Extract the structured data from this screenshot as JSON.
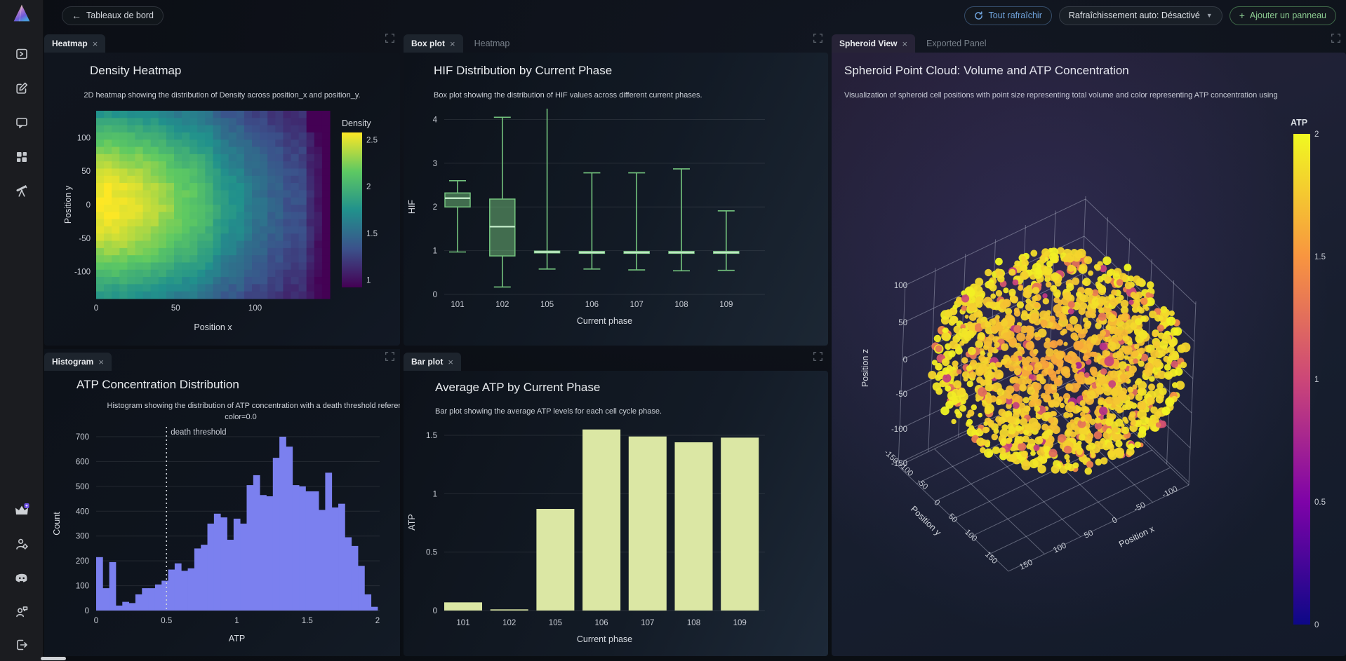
{
  "header": {
    "back_label": "Tableaux de bord",
    "refresh_all_label": "Tout rafraîchir",
    "auto_refresh_label": "Rafraîchissement auto: Désactivé",
    "add_panel_label": "Ajouter un panneau"
  },
  "sidebar": {
    "icons": [
      "app-logo",
      "panel-terminal-icon",
      "compose-icon",
      "chat-icon",
      "dashboard-icon",
      "telescope-icon",
      "crown-icon",
      "user-settings-icon",
      "discord-icon",
      "referral-icon",
      "logout-icon"
    ]
  },
  "panels": {
    "heatmap": {
      "tab": "Heatmap",
      "title": "Density Heatmap",
      "subtitle": "2D heatmap showing the distribution of Density across position_x and position_y."
    },
    "boxplot": {
      "tab": "Box plot",
      "tab2": "Heatmap",
      "title": "HIF Distribution by Current Phase",
      "subtitle": "Box plot showing the distribution of HIF values across different current phases."
    },
    "spheroid": {
      "tab": "Spheroid View",
      "tab2": "Exported Panel",
      "title": "Spheroid Point Cloud: Volume and ATP Concentration",
      "subtitle": "Visualization of spheroid cell positions with point size representing total volume and color representing ATP concentration using"
    },
    "histogram": {
      "tab": "Histogram",
      "title": "ATP Concentration Distribution",
      "subtitle_line1": "Histogram showing the distribution of ATP concentration with a death threshold referen",
      "subtitle_line2": "color=0.0"
    },
    "barplot": {
      "tab": "Bar plot",
      "title": "Average ATP by Current Phase",
      "subtitle": "Bar plot showing the average ATP levels for each cell cycle phase."
    }
  },
  "chart_data": [
    {
      "id": "density_heatmap",
      "type": "heatmap",
      "title": "Density Heatmap",
      "xlabel": "Position x",
      "ylabel": "Position y",
      "x_ticks": [
        0,
        50,
        100
      ],
      "y_ticks": [
        100,
        50,
        0,
        -50,
        -100
      ],
      "xlim": [
        0,
        147
      ],
      "ylim": [
        -140,
        140
      ],
      "grid": [
        30,
        26
      ],
      "density_model": {
        "base": 0.95,
        "amp": 1.63,
        "kx": 1.4,
        "ky": 0.8,
        "peak_at": "left-center"
      },
      "colormap": "viridis",
      "colorbar": {
        "label": "Density",
        "ticks": [
          2.5,
          2,
          1.5,
          1
        ],
        "vmin": 0.92,
        "vmax": 2.58
      }
    },
    {
      "id": "hif_box",
      "type": "box",
      "title": "HIF Distribution by Current Phase",
      "xlabel": "Current phase",
      "ylabel": "HIF",
      "categories": [
        "101",
        "102",
        "105",
        "106",
        "107",
        "108",
        "109"
      ],
      "stats": [
        {
          "lo": 0.97,
          "q1": 2.0,
          "med": 2.2,
          "q3": 2.32,
          "hi": 2.6
        },
        {
          "lo": 0.17,
          "q1": 0.88,
          "med": 1.55,
          "q3": 2.18,
          "hi": 4.05
        },
        {
          "lo": 0.58,
          "q1": 0.95,
          "med": 0.97,
          "q3": 0.99,
          "hi": 4.45
        },
        {
          "lo": 0.58,
          "q1": 0.94,
          "med": 0.96,
          "q3": 0.98,
          "hi": 2.78
        },
        {
          "lo": 0.56,
          "q1": 0.94,
          "med": 0.96,
          "q3": 0.98,
          "hi": 2.78
        },
        {
          "lo": 0.54,
          "q1": 0.94,
          "med": 0.96,
          "q3": 0.98,
          "hi": 2.87
        },
        {
          "lo": 0.55,
          "q1": 0.94,
          "med": 0.96,
          "q3": 0.98,
          "hi": 1.91
        }
      ],
      "y_ticks": [
        0,
        1,
        2,
        3,
        4
      ],
      "ylim": [
        0,
        4.2
      ],
      "color": "#74c47e"
    },
    {
      "id": "atp_hist",
      "type": "histogram",
      "title": "ATP Concentration Distribution",
      "xlabel": "ATP",
      "ylabel": "Count",
      "x_ticks": [
        0,
        0.5,
        1,
        1.5,
        2
      ],
      "y_ticks": [
        0,
        100,
        200,
        300,
        400,
        500,
        600,
        700
      ],
      "xlim": [
        0,
        2
      ],
      "ylim": [
        0,
        700
      ],
      "values": [
        215,
        90,
        195,
        20,
        35,
        30,
        65,
        90,
        90,
        105,
        120,
        165,
        190,
        160,
        170,
        250,
        265,
        350,
        390,
        375,
        285,
        370,
        350,
        505,
        545,
        465,
        460,
        615,
        700,
        660,
        505,
        500,
        480,
        480,
        405,
        555,
        415,
        430,
        295,
        260,
        180,
        65,
        15
      ],
      "threshold": {
        "x": 0.5,
        "label": "death threshold"
      },
      "color": "#7b80ef"
    },
    {
      "id": "atp_bar",
      "type": "bar",
      "title": "Average ATP by Current Phase",
      "xlabel": "Current phase",
      "ylabel": "ATP",
      "categories": [
        "101",
        "102",
        "105",
        "106",
        "107",
        "108",
        "109"
      ],
      "values": [
        0.07,
        0.01,
        0.87,
        1.55,
        1.49,
        1.44,
        1.48
      ],
      "y_ticks": [
        0,
        0.5,
        1,
        1.5
      ],
      "ylim": [
        0,
        1.62
      ],
      "color": "#dbe7a4"
    },
    {
      "id": "spheroid_cloud",
      "type": "scatter3d",
      "title": "Spheroid Point Cloud: Volume and ATP Concentration",
      "xlabel": "Position x",
      "ylabel": "Position y",
      "zlabel": "Position z",
      "x_ticks": [
        -100,
        -50,
        0,
        50,
        100,
        150
      ],
      "y_ticks": [
        -150,
        -100,
        -50,
        0,
        50,
        100,
        150
      ],
      "z_ticks": [
        100,
        50,
        0,
        -50,
        -100,
        -150
      ],
      "points": 1450,
      "colormap": "plasma",
      "colorbar": {
        "label": "ATP",
        "ticks": [
          2,
          1.5,
          1,
          0.5,
          0
        ],
        "vmin": 0,
        "vmax": 2
      }
    }
  ]
}
